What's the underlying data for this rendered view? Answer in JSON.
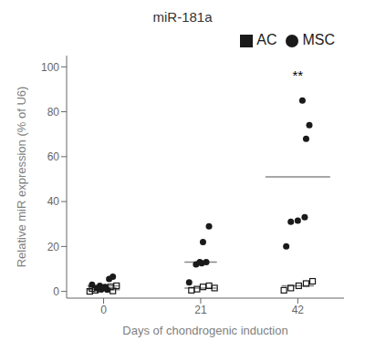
{
  "chart_data": {
    "type": "scatter",
    "title": "miR-181a",
    "x_label": "Days of chondrogenic induction",
    "y_label": "Relative miR expression (% of U6)",
    "xlim": [
      -8,
      52
    ],
    "xticks": [
      0,
      21,
      42
    ],
    "ylim": [
      -3,
      105
    ],
    "yticks": [
      0,
      20,
      40,
      60,
      80,
      100
    ],
    "grid": false,
    "legend": "upper right",
    "series": [
      {
        "name": "MSC",
        "marker": "circle",
        "color": "#1a1a1a",
        "x": [
          -2.5,
          -1.5,
          -0.5,
          0.3,
          1.2,
          2.0,
          0.8,
          -0.8,
          18.5,
          20,
          21.2,
          22.2,
          21.5,
          22.8,
          20.8,
          39.5,
          40.5,
          43.5,
          42,
          43.8,
          44.5,
          43
        ],
        "values": [
          3.0,
          1.5,
          1.0,
          2.0,
          5.5,
          6.5,
          0.8,
          2.5,
          4.0,
          12.0,
          12.5,
          13.0,
          22.0,
          29.0,
          13.0,
          20.0,
          31.0,
          33.0,
          31.5,
          68.0,
          74.0,
          85.0
        ]
      },
      {
        "name": "AC",
        "marker": "open-square",
        "color": "#1a1a1a",
        "x": [
          -3.0,
          -1.8,
          -0.8,
          0.3,
          1.5,
          2.8,
          2.0,
          -2.5,
          19,
          20.2,
          21.5,
          22.8,
          24,
          39,
          40.5,
          42.2,
          43.8,
          45.2
        ],
        "values": [
          0.0,
          0.5,
          1.0,
          1.5,
          2.0,
          2.5,
          0.2,
          1.2,
          0.5,
          1.0,
          2.0,
          2.5,
          1.5,
          0.5,
          1.5,
          2.5,
          3.5,
          4.5
        ]
      },
      {
        "type": "line",
        "color": "#888888",
        "x": [
          -3.5,
          3.5
        ],
        "values": [
          2.5,
          2.5
        ]
      },
      {
        "type": "line",
        "color": "#888888",
        "x": [
          -3.5,
          3.5
        ],
        "values": [
          0.8,
          0.8
        ]
      },
      {
        "type": "line",
        "color": "#888888",
        "x": [
          17.5,
          24.5
        ],
        "values": [
          13.0,
          13.0
        ]
      },
      {
        "type": "line",
        "color": "#888888",
        "x": [
          17.5,
          24.5
        ],
        "values": [
          1.5,
          1.5
        ]
      },
      {
        "type": "line",
        "color": "#888888",
        "x": [
          35,
          49
        ],
        "values": [
          51.0,
          51.0
        ]
      },
      {
        "type": "line",
        "color": "#888888",
        "x": [
          38.5,
          45.5
        ],
        "values": [
          2.5,
          2.5
        ]
      }
    ],
    "annotations": [
      {
        "text": "**",
        "x": 42,
        "y": 99
      }
    ]
  }
}
